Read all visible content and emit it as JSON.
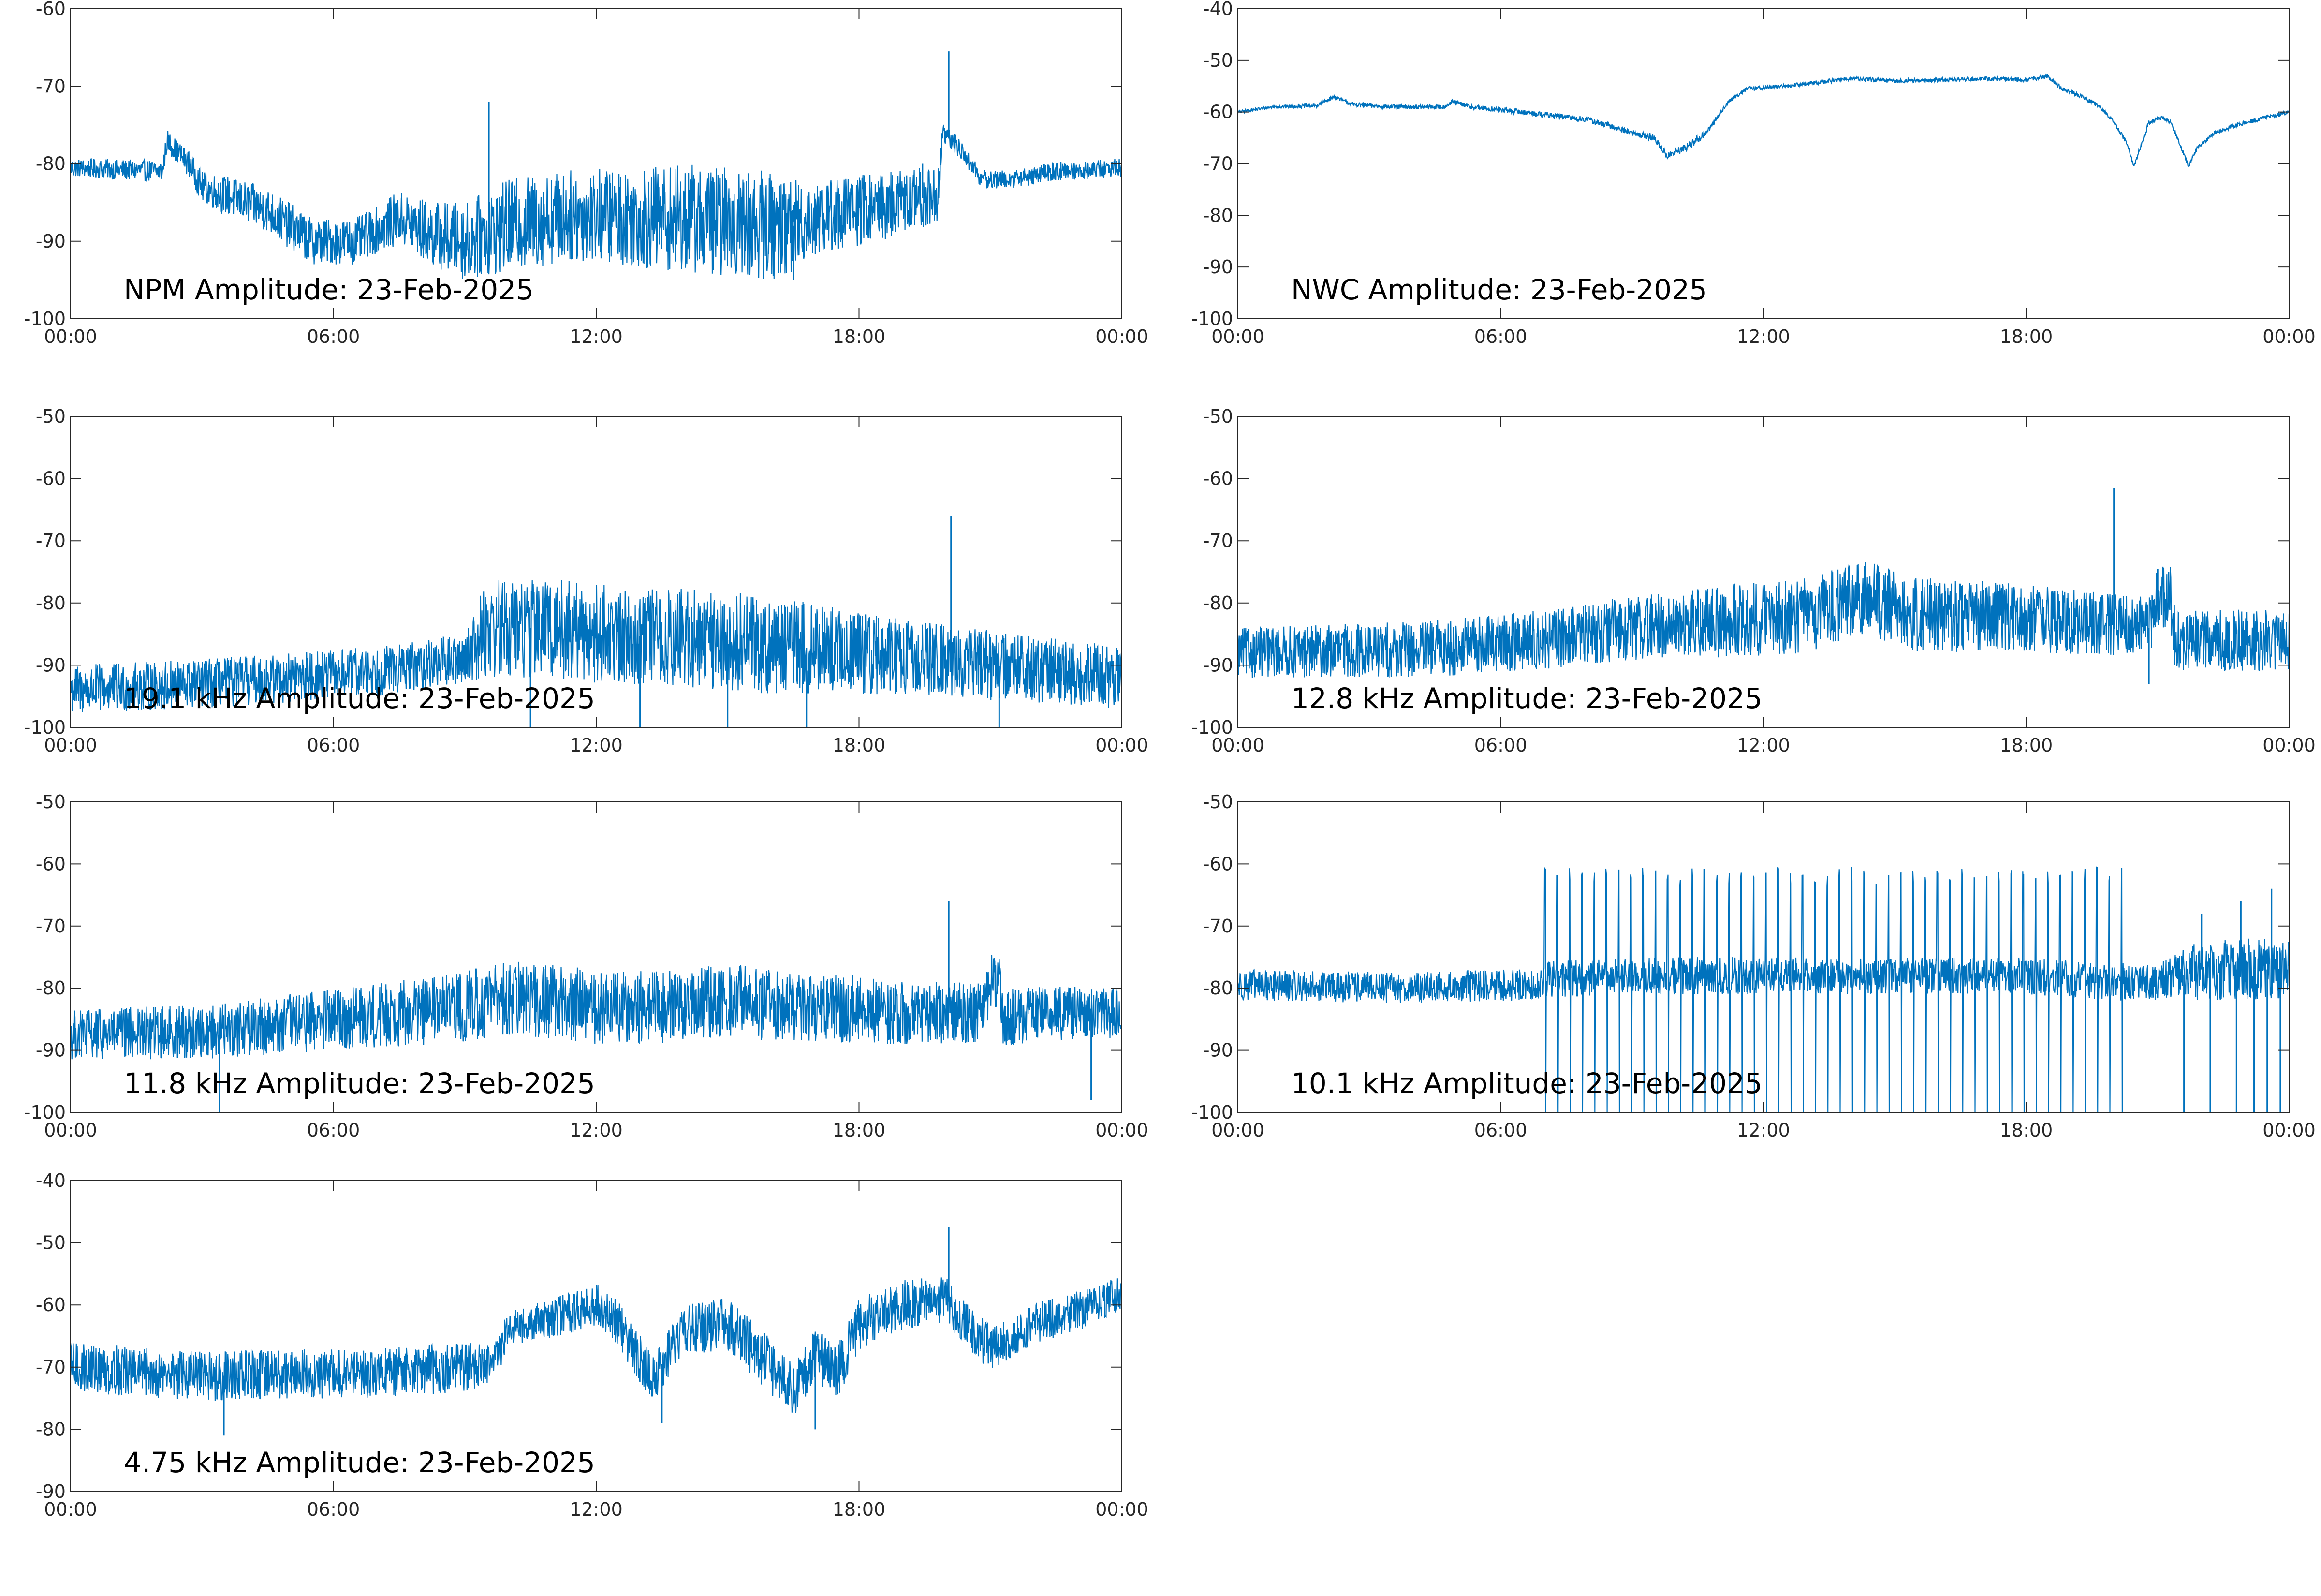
{
  "figure": {
    "title": "",
    "line_color": "#0072BD",
    "axes_color": "#262626",
    "background": "#FFFFFF"
  },
  "chart_data": [
    {
      "type": "line",
      "title": "NPM Amplitude: 23-Feb-2025",
      "xlabel": "",
      "ylabel": "",
      "x_unit": "hours",
      "xlim": [
        0,
        24
      ],
      "xticks": [
        0,
        6,
        12,
        18,
        24
      ],
      "xtick_labels": [
        "00:00",
        "06:00",
        "12:00",
        "18:00",
        "00:00"
      ],
      "ylim": [
        -100,
        -60
      ],
      "yticks": [
        -100,
        -90,
        -80,
        -70,
        -60
      ],
      "grid": false,
      "noise_band": 1.2,
      "trend": [
        [
          0,
          -80.5
        ],
        [
          2.1,
          -81
        ],
        [
          2.2,
          -77
        ],
        [
          2.7,
          -80
        ],
        [
          3.0,
          -83
        ],
        [
          4.5,
          -86
        ],
        [
          5.5,
          -90
        ],
        [
          6.5,
          -90
        ],
        [
          7.5,
          -87
        ],
        [
          8.2,
          -89
        ],
        [
          9.0,
          -90
        ],
        [
          10,
          -88
        ],
        [
          11,
          -87
        ],
        [
          12,
          -86.5
        ],
        [
          13,
          -87
        ],
        [
          14,
          -87
        ],
        [
          15,
          -87.5
        ],
        [
          16,
          -88
        ],
        [
          16.5,
          -88
        ],
        [
          17,
          -87
        ],
        [
          18,
          -86
        ],
        [
          19,
          -85
        ],
        [
          19.8,
          -84
        ],
        [
          19.9,
          -76
        ],
        [
          20.3,
          -78
        ],
        [
          20.8,
          -82
        ],
        [
          21.5,
          -82
        ],
        [
          22.5,
          -81
        ],
        [
          24,
          -80.5
        ]
      ],
      "noise_amp": [
        [
          0,
          1.2
        ],
        [
          2.5,
          1.5
        ],
        [
          3.5,
          2.5
        ],
        [
          5,
          3
        ],
        [
          7,
          3
        ],
        [
          8,
          4
        ],
        [
          9,
          5
        ],
        [
          10,
          6
        ],
        [
          12,
          6
        ],
        [
          14,
          7
        ],
        [
          16,
          7
        ],
        [
          17,
          5
        ],
        [
          19.8,
          4
        ],
        [
          19.9,
          1.5
        ],
        [
          20.5,
          1.2
        ],
        [
          24,
          1.2
        ]
      ],
      "spikes": [
        [
          9.55,
          -72
        ],
        [
          19.45,
          -80
        ],
        [
          20.05,
          -65.5
        ],
        [
          16.5,
          -95
        ]
      ]
    },
    {
      "type": "line",
      "title": "NWC Amplitude: 23-Feb-2025",
      "xlabel": "",
      "ylabel": "",
      "x_unit": "hours",
      "xlim": [
        0,
        24
      ],
      "xticks": [
        0,
        6,
        12,
        18,
        24
      ],
      "xtick_labels": [
        "00:00",
        "06:00",
        "12:00",
        "18:00",
        "00:00"
      ],
      "ylim": [
        -100,
        -40
      ],
      "yticks": [
        -100,
        -90,
        -80,
        -70,
        -60,
        -50,
        -40
      ],
      "grid": false,
      "noise_band": 0.3,
      "trend": [
        [
          0,
          -60
        ],
        [
          0.8,
          -59
        ],
        [
          1.8,
          -58.8
        ],
        [
          2.2,
          -57
        ],
        [
          2.6,
          -58.5
        ],
        [
          3.5,
          -59
        ],
        [
          4.7,
          -59
        ],
        [
          4.9,
          -58
        ],
        [
          5.3,
          -59
        ],
        [
          6.5,
          -60
        ],
        [
          8,
          -61.5
        ],
        [
          9,
          -64
        ],
        [
          9.5,
          -65
        ],
        [
          9.8,
          -68.5
        ],
        [
          10.2,
          -67
        ],
        [
          10.7,
          -64
        ],
        [
          11.2,
          -58
        ],
        [
          11.6,
          -55.5
        ],
        [
          12.5,
          -55
        ],
        [
          13,
          -54.5
        ],
        [
          14,
          -53.5
        ],
        [
          15,
          -54
        ],
        [
          16,
          -53.8
        ],
        [
          17,
          -53.5
        ],
        [
          18,
          -53.8
        ],
        [
          18.5,
          -53
        ],
        [
          18.8,
          -55.5
        ],
        [
          19,
          -56
        ],
        [
          19.5,
          -58
        ],
        [
          19.8,
          -60
        ],
        [
          20,
          -62
        ],
        [
          20.3,
          -66
        ],
        [
          20.45,
          -70.5
        ],
        [
          20.6,
          -67
        ],
        [
          20.8,
          -62
        ],
        [
          21.1,
          -61
        ],
        [
          21.3,
          -62
        ],
        [
          21.5,
          -66
        ],
        [
          21.7,
          -70.5
        ],
        [
          21.9,
          -67
        ],
        [
          22.3,
          -64
        ],
        [
          23,
          -62
        ],
        [
          24,
          -60
        ]
      ],
      "noise_amp": [
        [
          0,
          0.3
        ],
        [
          9,
          0.6
        ],
        [
          10.5,
          0.8
        ],
        [
          11,
          0.4
        ],
        [
          24,
          0.4
        ]
      ],
      "spikes": []
    },
    {
      "type": "line",
      "title": "19.1 kHz Amplitude: 23-Feb-2025",
      "xlabel": "",
      "ylabel": "",
      "x_unit": "hours",
      "xlim": [
        0,
        24
      ],
      "xticks": [
        0,
        6,
        12,
        18,
        24
      ],
      "xtick_labels": [
        "00:00",
        "06:00",
        "12:00",
        "18:00",
        "00:00"
      ],
      "ylim": [
        -100,
        -50
      ],
      "yticks": [
        -100,
        -90,
        -80,
        -70,
        -60,
        -50
      ],
      "grid": false,
      "noise_band": 3,
      "trend": [
        [
          0,
          -94
        ],
        [
          3,
          -93
        ],
        [
          5,
          -92
        ],
        [
          7,
          -91
        ],
        [
          9,
          -89
        ],
        [
          9.5,
          -84
        ],
        [
          11,
          -84
        ],
        [
          12,
          -85
        ],
        [
          15,
          -86
        ],
        [
          18,
          -88
        ],
        [
          21,
          -90
        ],
        [
          24,
          -92
        ]
      ],
      "noise_amp": [
        [
          0,
          4
        ],
        [
          9,
          4
        ],
        [
          9.5,
          8
        ],
        [
          16,
          8
        ],
        [
          19,
          6
        ],
        [
          24,
          5
        ]
      ],
      "spikes": [
        [
          20.1,
          -66
        ],
        [
          10.5,
          -100
        ],
        [
          13,
          -100
        ],
        [
          15,
          -100
        ],
        [
          16.8,
          -100
        ],
        [
          21.2,
          -100
        ]
      ]
    },
    {
      "type": "line",
      "title": "12.8 kHz Amplitude: 23-Feb-2025",
      "xlabel": "",
      "ylabel": "",
      "x_unit": "hours",
      "xlim": [
        0,
        24
      ],
      "xticks": [
        0,
        6,
        12,
        18,
        24
      ],
      "xtick_labels": [
        "00:00",
        "06:00",
        "12:00",
        "18:00",
        "00:00"
      ],
      "ylim": [
        -100,
        -50
      ],
      "yticks": [
        -100,
        -90,
        -80,
        -70,
        -60,
        -50
      ],
      "grid": false,
      "noise_band": 2.5,
      "trend": [
        [
          0,
          -88
        ],
        [
          4,
          -87.5
        ],
        [
          7,
          -86
        ],
        [
          9,
          -84
        ],
        [
          11,
          -83
        ],
        [
          13,
          -82
        ],
        [
          14.3,
          -79
        ],
        [
          15.5,
          -82
        ],
        [
          17,
          -82
        ],
        [
          19,
          -83
        ],
        [
          20.8,
          -84
        ],
        [
          21,
          -79
        ],
        [
          21.3,
          -79
        ],
        [
          21.4,
          -86
        ],
        [
          22,
          -86
        ],
        [
          24,
          -86
        ]
      ],
      "noise_amp": [
        [
          0,
          4
        ],
        [
          8,
          5
        ],
        [
          12,
          6
        ],
        [
          16,
          6
        ],
        [
          20,
          5
        ],
        [
          24,
          5
        ]
      ],
      "spikes": [
        [
          20.0,
          -61.5
        ],
        [
          21.0,
          -74.5
        ],
        [
          21.25,
          -75
        ],
        [
          20.8,
          -93
        ]
      ]
    },
    {
      "type": "line",
      "title": "11.8 kHz Amplitude: 23-Feb-2025",
      "xlabel": "",
      "ylabel": "",
      "x_unit": "hours",
      "xlim": [
        0,
        24
      ],
      "xticks": [
        0,
        6,
        12,
        18,
        24
      ],
      "xtick_labels": [
        "00:00",
        "06:00",
        "12:00",
        "18:00",
        "00:00"
      ],
      "ylim": [
        -100,
        -50
      ],
      "yticks": [
        -100,
        -90,
        -80,
        -70,
        -60,
        -50
      ],
      "grid": false,
      "noise_band": 2.5,
      "trend": [
        [
          0,
          -87.5
        ],
        [
          3,
          -87
        ],
        [
          6,
          -85
        ],
        [
          9,
          -83
        ],
        [
          10,
          -81.5
        ],
        [
          12,
          -83
        ],
        [
          14,
          -83
        ],
        [
          15,
          -82
        ],
        [
          17,
          -83
        ],
        [
          19,
          -84
        ],
        [
          20.8,
          -84
        ],
        [
          21,
          -79
        ],
        [
          21.2,
          -79
        ],
        [
          21.3,
          -85
        ],
        [
          22,
          -84
        ],
        [
          24,
          -84
        ]
      ],
      "noise_amp": [
        [
          0,
          4
        ],
        [
          6,
          5
        ],
        [
          10,
          6
        ],
        [
          16,
          6
        ],
        [
          20,
          5
        ],
        [
          24,
          4
        ]
      ],
      "spikes": [
        [
          20.05,
          -66
        ],
        [
          3.4,
          -100
        ],
        [
          23.3,
          -98
        ]
      ]
    },
    {
      "type": "line",
      "title": "10.1 kHz Amplitude: 23-Feb-2025",
      "xlabel": "",
      "ylabel": "",
      "x_unit": "hours",
      "xlim": [
        0,
        24
      ],
      "xticks": [
        0,
        6,
        12,
        18,
        24
      ],
      "xtick_labels": [
        "00:00",
        "06:00",
        "12:00",
        "18:00",
        "00:00"
      ],
      "ylim": [
        -100,
        -50
      ],
      "yticks": [
        -100,
        -90,
        -80,
        -70,
        -60,
        -50
      ],
      "grid": false,
      "noise_band": 1.5,
      "trend": [
        [
          0,
          -79.5
        ],
        [
          4,
          -80
        ],
        [
          6,
          -79.5
        ],
        [
          6.9,
          -79.5
        ],
        [
          7,
          -78.5
        ],
        [
          10,
          -78
        ],
        [
          14,
          -78
        ],
        [
          18,
          -78
        ],
        [
          20,
          -79
        ],
        [
          21,
          -79
        ],
        [
          22,
          -77
        ],
        [
          24,
          -77
        ]
      ],
      "noise_amp": [
        [
          0,
          2.5
        ],
        [
          6.9,
          2.5
        ],
        [
          7,
          3
        ],
        [
          21,
          3
        ],
        [
          22,
          5
        ],
        [
          24,
          5
        ]
      ],
      "pulses": {
        "start": 7.0,
        "end": 20.2,
        "period": 0.28,
        "top": -63.5,
        "bottom": -100
      },
      "spikes": [
        [
          21.6,
          -100
        ],
        [
          22.2,
          -100
        ],
        [
          22.8,
          -100
        ],
        [
          23.2,
          -100
        ],
        [
          23.5,
          -100
        ],
        [
          23.8,
          -100
        ],
        [
          22.0,
          -68
        ],
        [
          22.9,
          -66
        ],
        [
          23.6,
          -64
        ]
      ]
    },
    {
      "type": "line",
      "title": "4.75 kHz Amplitude: 23-Feb-2025",
      "xlabel": "",
      "ylabel": "",
      "x_unit": "hours",
      "xlim": [
        0,
        24
      ],
      "xticks": [
        0,
        6,
        12,
        18,
        24
      ],
      "xtick_labels": [
        "00:00",
        "06:00",
        "12:00",
        "18:00",
        "00:00"
      ],
      "ylim": [
        -90,
        -40
      ],
      "yticks": [
        -90,
        -80,
        -70,
        -60,
        -50,
        -40
      ],
      "grid": false,
      "noise_band": 2,
      "trend": [
        [
          0,
          -70
        ],
        [
          3,
          -71.5
        ],
        [
          5,
          -71
        ],
        [
          7,
          -71
        ],
        [
          9,
          -70
        ],
        [
          9.6,
          -70
        ],
        [
          10,
          -64
        ],
        [
          11,
          -62
        ],
        [
          12,
          -60
        ],
        [
          12.5,
          -63
        ],
        [
          13.3,
          -72
        ],
        [
          14,
          -64
        ],
        [
          15,
          -63
        ],
        [
          16,
          -70
        ],
        [
          16.5,
          -74
        ],
        [
          17,
          -68
        ],
        [
          17.5,
          -71
        ],
        [
          18,
          -63
        ],
        [
          19,
          -60
        ],
        [
          20,
          -59
        ],
        [
          20.3,
          -62
        ],
        [
          21,
          -67
        ],
        [
          22,
          -63
        ],
        [
          23,
          -61
        ],
        [
          24,
          -58
        ]
      ],
      "noise_amp": [
        [
          0,
          4
        ],
        [
          9,
          4
        ],
        [
          10,
          3
        ],
        [
          16,
          4.5
        ],
        [
          19,
          4
        ],
        [
          24,
          3
        ]
      ],
      "spikes": [
        [
          20.05,
          -47.5
        ],
        [
          3.5,
          -81
        ],
        [
          17.0,
          -80
        ],
        [
          13.5,
          -79
        ]
      ]
    }
  ]
}
